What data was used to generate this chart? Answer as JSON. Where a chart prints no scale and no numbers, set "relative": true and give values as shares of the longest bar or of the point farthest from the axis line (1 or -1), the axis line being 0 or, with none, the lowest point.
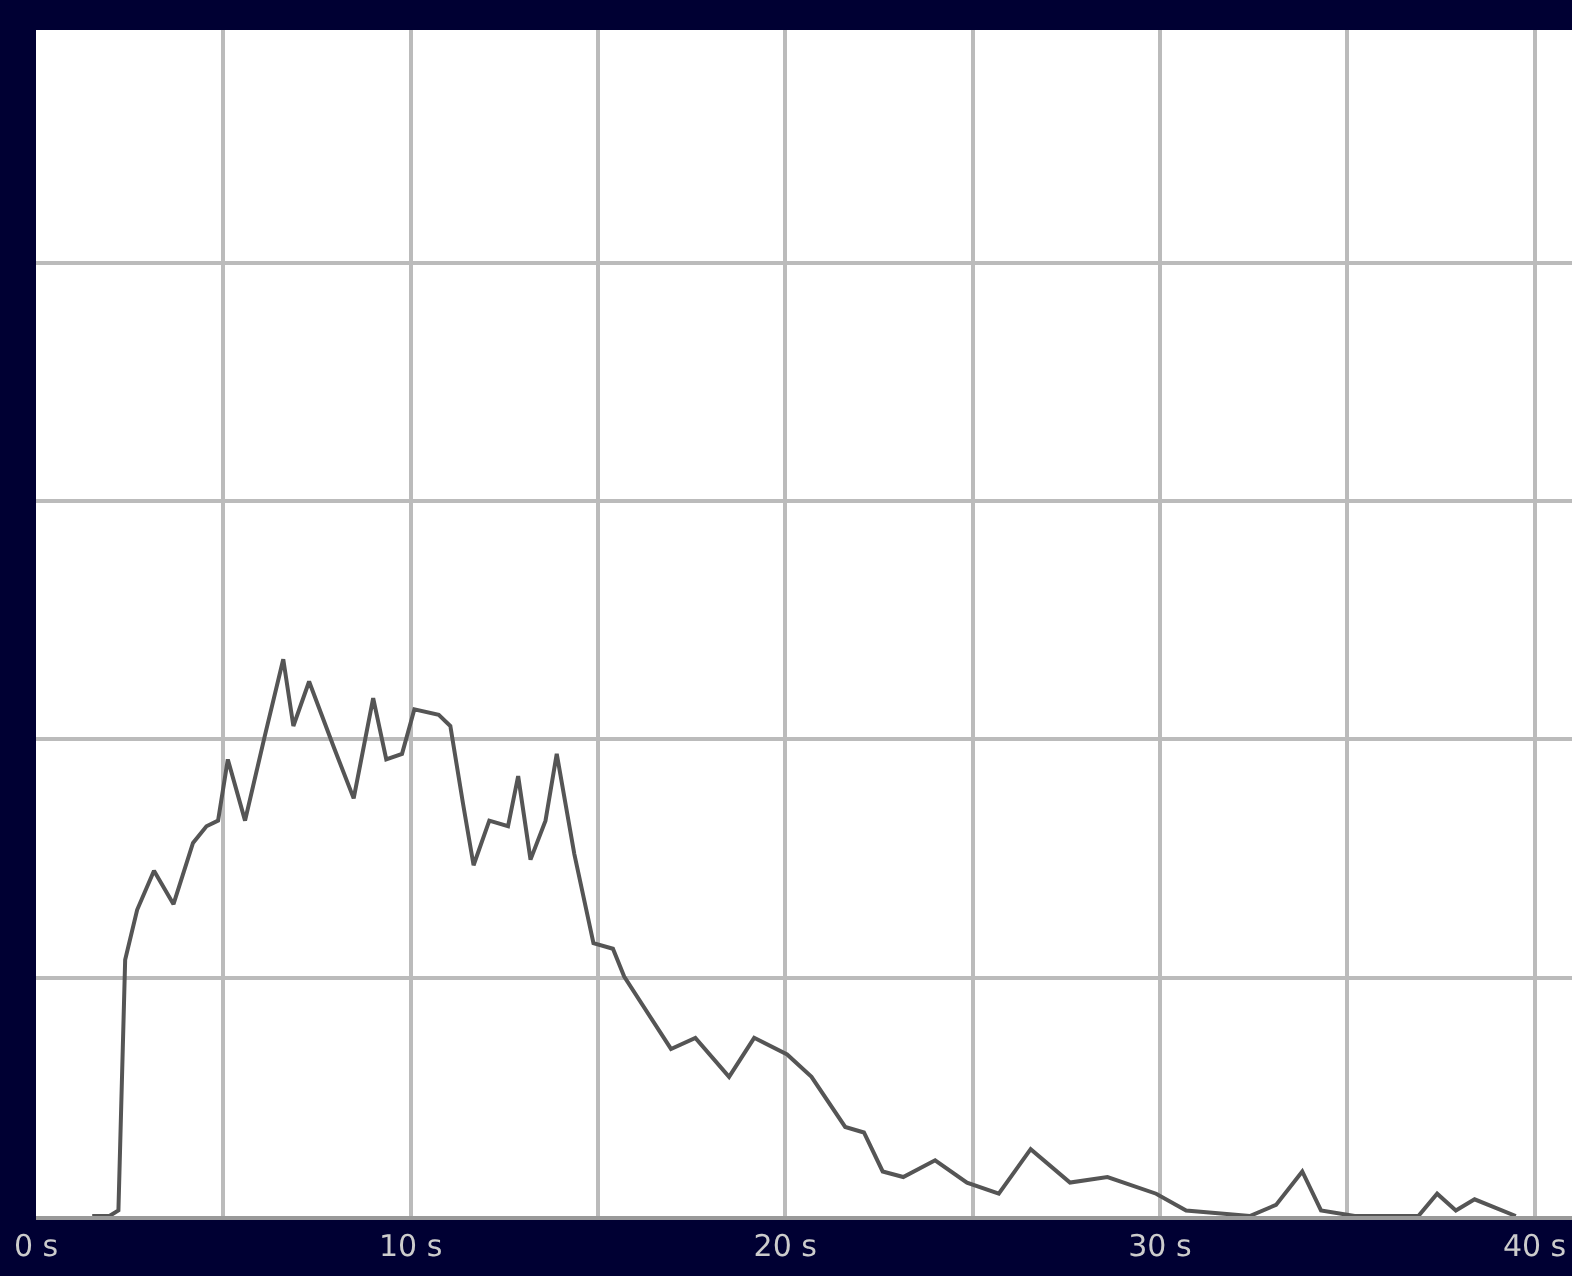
{
  "chart_data": {
    "type": "line",
    "relative": true,
    "grid": true,
    "marker": "none",
    "line_style": "solid",
    "x": [
      1.5,
      1.96,
      2.2,
      2.38,
      2.7,
      3.15,
      3.67,
      4.19,
      4.55,
      4.86,
      5.12,
      5.58,
      6.1,
      6.6,
      6.87,
      7.29,
      7.96,
      8.48,
      9.0,
      9.35,
      9.77,
      10.1,
      10.75,
      11.06,
      11.4,
      11.68,
      12.1,
      12.6,
      12.87,
      13.2,
      13.6,
      13.9,
      14.37,
      14.88,
      15.4,
      15.7,
      16.95,
      17.6,
      18.5,
      19.17,
      20.05,
      20.7,
      21.6,
      22.1,
      22.6,
      23.15,
      24.0,
      24.85,
      25.7,
      26.55,
      27.6,
      28.6,
      29.9,
      30.7,
      32.4,
      33.1,
      33.8,
      34.3,
      35.2,
      36.9,
      37.4,
      37.9,
      38.4,
      39.5
    ],
    "series": [
      {
        "color": "#555555",
        "values": [
          0,
          0,
          0.01,
          0.46,
          0.55,
          0.62,
          0.56,
          0.67,
          0.7,
          0.71,
          0.82,
          0.71,
          0.86,
          1.0,
          0.88,
          0.96,
          0.84,
          0.75,
          0.93,
          0.82,
          0.83,
          0.91,
          0.9,
          0.88,
          0.74,
          0.63,
          0.71,
          0.7,
          0.79,
          0.64,
          0.71,
          0.83,
          0.65,
          0.49,
          0.48,
          0.43,
          0.3,
          0.32,
          0.25,
          0.32,
          0.29,
          0.25,
          0.16,
          0.15,
          0.08,
          0.07,
          0.1,
          0.06,
          0.04,
          0.12,
          0.06,
          0.07,
          0.04,
          0.01,
          0,
          0.02,
          0.08,
          0.01,
          0,
          0,
          0.04,
          0.01,
          0.03,
          0
        ]
      }
    ],
    "xlim": [
      0,
      41
    ],
    "xticks": [
      {
        "value": 0,
        "label": "0 s"
      },
      {
        "value": 5,
        "label": null
      },
      {
        "value": 10,
        "label": "10 s"
      },
      {
        "value": 15,
        "label": null
      },
      {
        "value": 20,
        "label": "20 s"
      },
      {
        "value": 25,
        "label": null
      },
      {
        "value": 30,
        "label": "30 s"
      },
      {
        "value": 35,
        "label": null
      },
      {
        "value": 40,
        "label": "40 s"
      }
    ]
  }
}
